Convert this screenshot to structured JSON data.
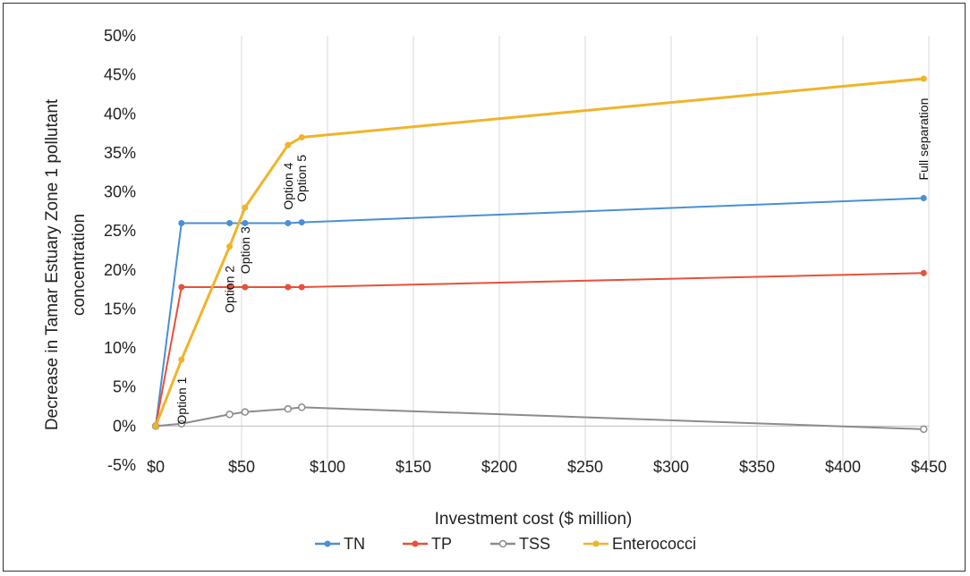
{
  "chart_data": {
    "type": "line",
    "title": "",
    "xlabel": "Investment  cost ($ million)",
    "ylabel_lines": [
      "Decrease in Tamar Estuary Zone 1 pollutant",
      "concentration"
    ],
    "xlim": [
      0,
      450
    ],
    "ylim": [
      -5,
      50
    ],
    "x_ticks": [
      0,
      50,
      100,
      150,
      200,
      250,
      300,
      350,
      400,
      450
    ],
    "x_tick_labels": [
      "$0",
      "$50",
      "$100",
      "$150",
      "$200",
      "$250",
      "$300",
      "$350",
      "$400",
      "$450"
    ],
    "y_ticks": [
      -5,
      0,
      5,
      10,
      15,
      20,
      25,
      30,
      35,
      40,
      45,
      50
    ],
    "y_tick_labels": [
      "-5%",
      "0%",
      "5%",
      "10%",
      "15%",
      "20%",
      "25%",
      "30%",
      "35%",
      "40%",
      "45%",
      "50%"
    ],
    "grid": "vertical",
    "legend_position": "bottom",
    "x": [
      0,
      15,
      43,
      52,
      77,
      85,
      447
    ],
    "series": [
      {
        "name": "TN",
        "color": "#4a8fd4",
        "values": [
          0,
          26,
          26,
          26,
          26,
          26.1,
          29.2
        ]
      },
      {
        "name": "TP",
        "color": "#e8503a",
        "values": [
          0,
          17.8,
          17.8,
          17.8,
          17.8,
          17.8,
          19.6
        ]
      },
      {
        "name": "TSS",
        "color": "#8c8c8c",
        "marker": "hollow",
        "values": [
          0,
          0.3,
          1.5,
          1.8,
          2.2,
          2.4,
          -0.4
        ]
      },
      {
        "name": "Enterococci",
        "color": "#f0b429",
        "values": [
          0,
          8.5,
          23,
          28,
          36,
          37,
          44.5
        ]
      }
    ],
    "annotations": [
      {
        "text": "Option 1",
        "x": 15,
        "y": 0.2
      },
      {
        "text": "Option 2",
        "x": 43,
        "y": 14.5
      },
      {
        "text": "Option 3",
        "x": 52,
        "y": 19.5
      },
      {
        "text": "Option 4",
        "x": 77,
        "y": 27.7
      },
      {
        "text": "Option 5",
        "x": 85,
        "y": 28.7
      },
      {
        "text": "Full separation",
        "x": 447,
        "y": 31.5
      }
    ]
  }
}
